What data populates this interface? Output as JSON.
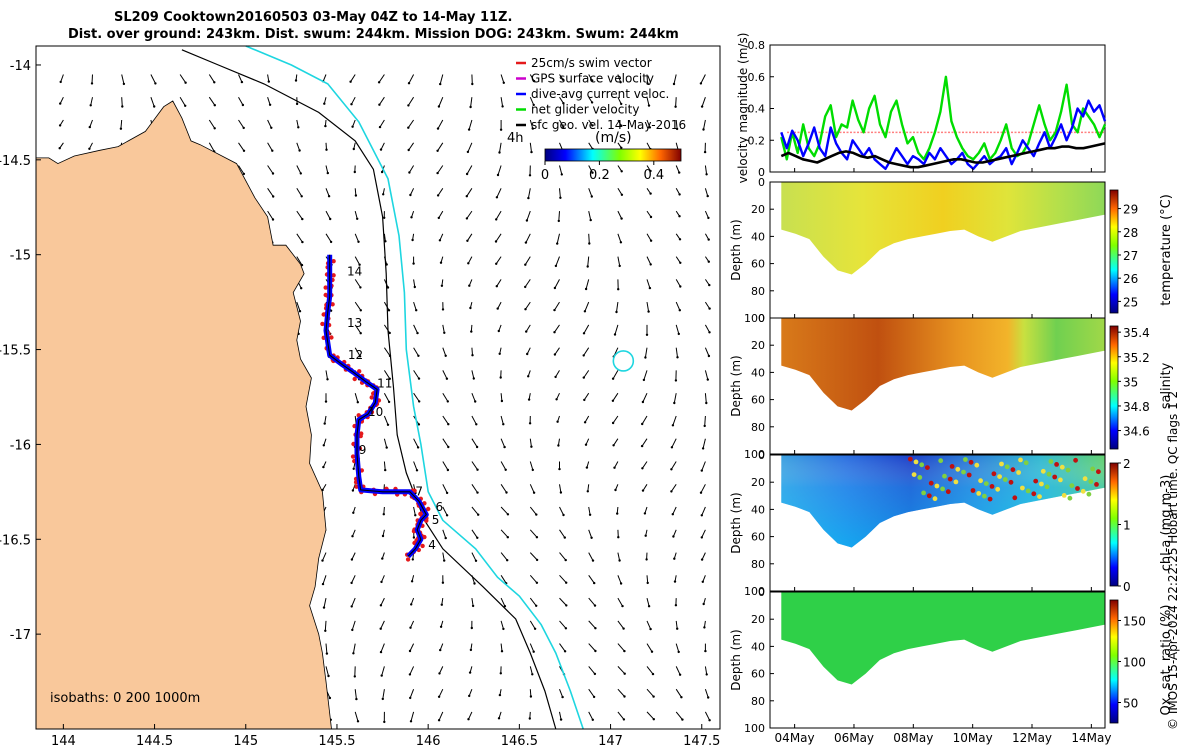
{
  "title": {
    "line1": "SL209 Cooktown20160503 03-May 04Z to 14-May 11Z.",
    "line2": "Dist. over ground: 243km. Dist. swum: 244km. Mission DOG: 243km. Swum: 244km"
  },
  "stamp": "© IMOS 15-Apr-2024 22:22:25 Hobart time. QC flags 1  2",
  "map": {
    "xticks": [
      "144",
      "144.5",
      "145",
      "145.5",
      "146",
      "146.5",
      "147",
      "147.5"
    ],
    "xtick_values": [
      144,
      144.5,
      145,
      145.5,
      146,
      146.5,
      147,
      147.5
    ],
    "yticks": [
      "-14",
      "-14.5",
      "-15",
      "-15.5",
      "-16",
      "-16.5",
      "-17"
    ],
    "ytick_values": [
      -14,
      -14.5,
      -15,
      -15.5,
      -16,
      -16.5,
      -17
    ],
    "xlim": [
      143.85,
      147.6
    ],
    "ylim": [
      -17.5,
      -13.9
    ],
    "legend": [
      {
        "label": "25cm/s swim vector",
        "color": "#e41a1c"
      },
      {
        "label": "GPS surface velocity",
        "color": "#cc00cc"
      },
      {
        "label": "dive-avg current veloc.",
        "color": "#0000ff"
      },
      {
        "label": "net glider velocity",
        "color": "#00dd00"
      },
      {
        "label": "sfc geo. vel. 14-May-2016",
        "color": "#000000"
      }
    ],
    "colorbar": {
      "label": "(m/s)",
      "ticks": [
        "0",
        "0.2",
        "0.4"
      ],
      "tick_values": [
        0,
        0.2,
        0.4
      ],
      "range": [
        0,
        0.5
      ]
    },
    "annotation_4h": "4h",
    "isobaths": "isobaths: 0   200  1000m",
    "day_labels": [
      {
        "text": "14",
        "lon": 145.555,
        "lat": -15.11
      },
      {
        "text": "13",
        "lon": 145.555,
        "lat": -15.38
      },
      {
        "text": "12",
        "lon": 145.56,
        "lat": -15.55
      },
      {
        "text": "11",
        "lon": 145.72,
        "lat": -15.7
      },
      {
        "text": "10",
        "lon": 145.67,
        "lat": -15.85
      },
      {
        "text": "9",
        "lon": 145.62,
        "lat": -16.05
      },
      {
        "text": "7",
        "lon": 145.93,
        "lat": -16.27
      },
      {
        "text": "6",
        "lon": 146.04,
        "lat": -16.35
      },
      {
        "text": "5",
        "lon": 146.02,
        "lat": -16.42
      },
      {
        "text": "4",
        "lon": 146.0,
        "lat": -16.55
      }
    ],
    "track": [
      [
        145.89,
        -16.59
      ],
      [
        145.93,
        -16.55
      ],
      [
        145.96,
        -16.5
      ],
      [
        145.94,
        -16.45
      ],
      [
        145.96,
        -16.4
      ],
      [
        145.99,
        -16.37
      ],
      [
        145.95,
        -16.3
      ],
      [
        145.9,
        -16.25
      ],
      [
        145.75,
        -16.25
      ],
      [
        145.63,
        -16.24
      ],
      [
        145.62,
        -16.17
      ],
      [
        145.61,
        -16.05
      ],
      [
        145.61,
        -15.95
      ],
      [
        145.62,
        -15.87
      ],
      [
        145.67,
        -15.84
      ],
      [
        145.71,
        -15.78
      ],
      [
        145.72,
        -15.71
      ],
      [
        145.66,
        -15.67
      ],
      [
        145.59,
        -15.62
      ],
      [
        145.53,
        -15.58
      ],
      [
        145.46,
        -15.53
      ],
      [
        145.44,
        -15.4
      ],
      [
        145.45,
        -15.3
      ],
      [
        145.46,
        -15.22
      ],
      [
        145.46,
        -15.12
      ],
      [
        145.46,
        -15.0
      ]
    ],
    "coast": [
      [
        143.85,
        -14.49
      ],
      [
        143.92,
        -14.49
      ],
      [
        143.97,
        -14.52
      ],
      [
        144.06,
        -14.48
      ],
      [
        144.2,
        -14.45
      ],
      [
        144.3,
        -14.43
      ],
      [
        144.45,
        -14.35
      ],
      [
        144.55,
        -14.22
      ],
      [
        144.6,
        -14.19
      ],
      [
        144.65,
        -14.28
      ],
      [
        144.7,
        -14.4
      ],
      [
        144.75,
        -14.42
      ],
      [
        144.95,
        -14.52
      ],
      [
        145.05,
        -14.7
      ],
      [
        145.12,
        -14.8
      ],
      [
        145.15,
        -14.95
      ],
      [
        145.22,
        -14.95
      ],
      [
        145.3,
        -15.05
      ],
      [
        145.32,
        -15.1
      ],
      [
        145.26,
        -15.2
      ],
      [
        145.3,
        -15.35
      ],
      [
        145.28,
        -15.45
      ],
      [
        145.3,
        -15.55
      ],
      [
        145.36,
        -15.65
      ],
      [
        145.33,
        -15.8
      ],
      [
        145.36,
        -15.95
      ],
      [
        145.35,
        -16.1
      ],
      [
        145.42,
        -16.25
      ],
      [
        145.44,
        -16.45
      ],
      [
        145.4,
        -16.6
      ],
      [
        145.38,
        -16.75
      ],
      [
        145.35,
        -16.85
      ],
      [
        145.4,
        -17.0
      ],
      [
        145.42,
        -17.1
      ],
      [
        145.44,
        -17.25
      ],
      [
        145.47,
        -17.5
      ],
      [
        143.85,
        -17.5
      ]
    ],
    "isobath_200": [
      [
        144.65,
        -13.92
      ],
      [
        144.85,
        -14.0
      ],
      [
        145.1,
        -14.1
      ],
      [
        145.4,
        -14.25
      ],
      [
        145.6,
        -14.4
      ],
      [
        145.7,
        -14.55
      ],
      [
        145.75,
        -14.8
      ],
      [
        145.77,
        -15.1
      ],
      [
        145.78,
        -15.4
      ],
      [
        145.81,
        -15.7
      ],
      [
        145.83,
        -15.95
      ],
      [
        145.88,
        -16.15
      ],
      [
        145.98,
        -16.4
      ],
      [
        146.08,
        -16.55
      ],
      [
        146.3,
        -16.75
      ],
      [
        146.48,
        -16.92
      ],
      [
        146.56,
        -17.1
      ],
      [
        146.64,
        -17.3
      ],
      [
        146.7,
        -17.5
      ]
    ],
    "isobath_1000": [
      [
        145.0,
        -13.9
      ],
      [
        145.25,
        -14.0
      ],
      [
        145.45,
        -14.1
      ],
      [
        145.62,
        -14.3
      ],
      [
        145.78,
        -14.6
      ],
      [
        145.84,
        -14.9
      ],
      [
        145.87,
        -15.2
      ],
      [
        145.88,
        -15.5
      ],
      [
        145.92,
        -15.8
      ],
      [
        145.96,
        -16.0
      ],
      [
        146.0,
        -16.25
      ],
      [
        146.08,
        -16.4
      ],
      [
        146.26,
        -16.55
      ],
      [
        146.38,
        -16.7
      ],
      [
        146.5,
        -16.8
      ],
      [
        146.62,
        -16.95
      ],
      [
        146.7,
        -17.1
      ],
      [
        146.78,
        -17.3
      ],
      [
        146.85,
        -17.5
      ]
    ],
    "eddy": {
      "lon": 147.07,
      "lat": -15.56
    }
  },
  "velocity_panel": {
    "ylabel": "velocity magnitude (m/s)",
    "yticks": [
      "0",
      "0.2",
      "0.4",
      "0.6",
      "0.8"
    ],
    "ytick_values": [
      0,
      0.2,
      0.4,
      0.6,
      0.8
    ],
    "ylim": [
      0,
      0.8
    ],
    "swim_reference": 0.25,
    "series": [
      {
        "name": "net glider velocity",
        "color": "#00dd00",
        "values": [
          0.22,
          0.08,
          0.25,
          0.12,
          0.3,
          0.15,
          0.1,
          0.18,
          0.35,
          0.42,
          0.22,
          0.3,
          0.28,
          0.45,
          0.33,
          0.25,
          0.4,
          0.48,
          0.3,
          0.22,
          0.38,
          0.45,
          0.3,
          0.18,
          0.22,
          0.12,
          0.08,
          0.15,
          0.25,
          0.38,
          0.6,
          0.32,
          0.22,
          0.15,
          0.1,
          0.08,
          0.12,
          0.18,
          0.08,
          0.12,
          0.2,
          0.3,
          0.15,
          0.1,
          0.12,
          0.18,
          0.3,
          0.42,
          0.3,
          0.2,
          0.25,
          0.38,
          0.55,
          0.3,
          0.25,
          0.4,
          0.35,
          0.3,
          0.22,
          0.3
        ]
      },
      {
        "name": "dive-avg current veloc.",
        "color": "#0000ff",
        "values": [
          0.25,
          0.15,
          0.26,
          0.2,
          0.1,
          0.18,
          0.28,
          0.15,
          0.1,
          0.28,
          0.18,
          0.12,
          0.08,
          0.2,
          0.15,
          0.1,
          0.15,
          0.08,
          0.05,
          0.02,
          0.08,
          0.15,
          0.1,
          0.05,
          0.1,
          0.08,
          0.05,
          0.12,
          0.08,
          0.15,
          0.1,
          0.05,
          0.08,
          0.12,
          0.05,
          0.02,
          0.06,
          0.1,
          0.05,
          0.08,
          0.1,
          0.15,
          0.05,
          0.12,
          0.2,
          0.15,
          0.1,
          0.18,
          0.25,
          0.15,
          0.22,
          0.3,
          0.2,
          0.28,
          0.4,
          0.35,
          0.45,
          0.38,
          0.42,
          0.32
        ]
      },
      {
        "name": "sfc geo. vel.",
        "color": "#000000",
        "values": [
          0.1,
          0.12,
          0.1,
          0.08,
          0.07,
          0.06,
          0.08,
          0.1,
          0.12,
          0.13,
          0.12,
          0.1,
          0.09,
          0.1,
          0.08,
          0.06,
          0.05,
          0.04,
          0.03,
          0.03,
          0.04,
          0.05,
          0.06,
          0.07,
          0.08,
          0.08,
          0.07,
          0.06,
          0.06,
          0.07,
          0.08,
          0.09,
          0.1,
          0.11,
          0.12,
          0.13,
          0.14,
          0.15,
          0.15,
          0.16,
          0.16,
          0.15,
          0.15,
          0.16,
          0.17,
          0.18
        ]
      }
    ]
  },
  "depth_panels": [
    {
      "name": "temperature",
      "cbar_label": "temperature (°C)",
      "cbar_ticks": [
        "25",
        "26",
        "27",
        "28",
        "29"
      ],
      "cbar_values": [
        25,
        26,
        27,
        28,
        29
      ],
      "crange": [
        24.5,
        29.8
      ]
    },
    {
      "name": "salinity",
      "cbar_label": "salinity",
      "cbar_ticks": [
        "34.6",
        "34.8",
        "35",
        "35.2",
        "35.4"
      ],
      "cbar_values": [
        34.6,
        34.8,
        35.0,
        35.2,
        35.4
      ],
      "crange": [
        34.45,
        35.45
      ]
    },
    {
      "name": "chl-a",
      "cbar_label": "chl-a (mg m-3)",
      "cbar_ticks": [
        "0",
        "1",
        "2"
      ],
      "cbar_values": [
        0,
        1,
        2
      ],
      "crange": [
        0,
        2
      ]
    },
    {
      "name": "oxygen",
      "cbar_label": "Ox. sat. ratio (%)",
      "cbar_ticks": [
        "50",
        "100",
        "150"
      ],
      "cbar_values": [
        50,
        100,
        150
      ],
      "crange": [
        25,
        175
      ]
    }
  ],
  "depth_axis": {
    "ylabel": "Depth (m)",
    "yticks": [
      "0",
      "20",
      "40",
      "60",
      "80",
      "100"
    ],
    "ytick_values": [
      0,
      20,
      40,
      60,
      80,
      100
    ],
    "ylim": [
      0,
      100
    ]
  },
  "depth_profile": [
    35,
    38,
    42,
    55,
    65,
    68,
    60,
    50,
    45,
    42,
    40,
    38,
    36,
    35,
    40,
    44,
    40,
    36,
    34,
    32,
    30,
    28,
    26,
    24
  ],
  "time_axis": {
    "labels": [
      "04May",
      "06May",
      "08May",
      "10May",
      "12May",
      "14May"
    ],
    "day_values": [
      4,
      6,
      8,
      10,
      12,
      14
    ],
    "range": [
      3.17,
      14.46
    ]
  }
}
